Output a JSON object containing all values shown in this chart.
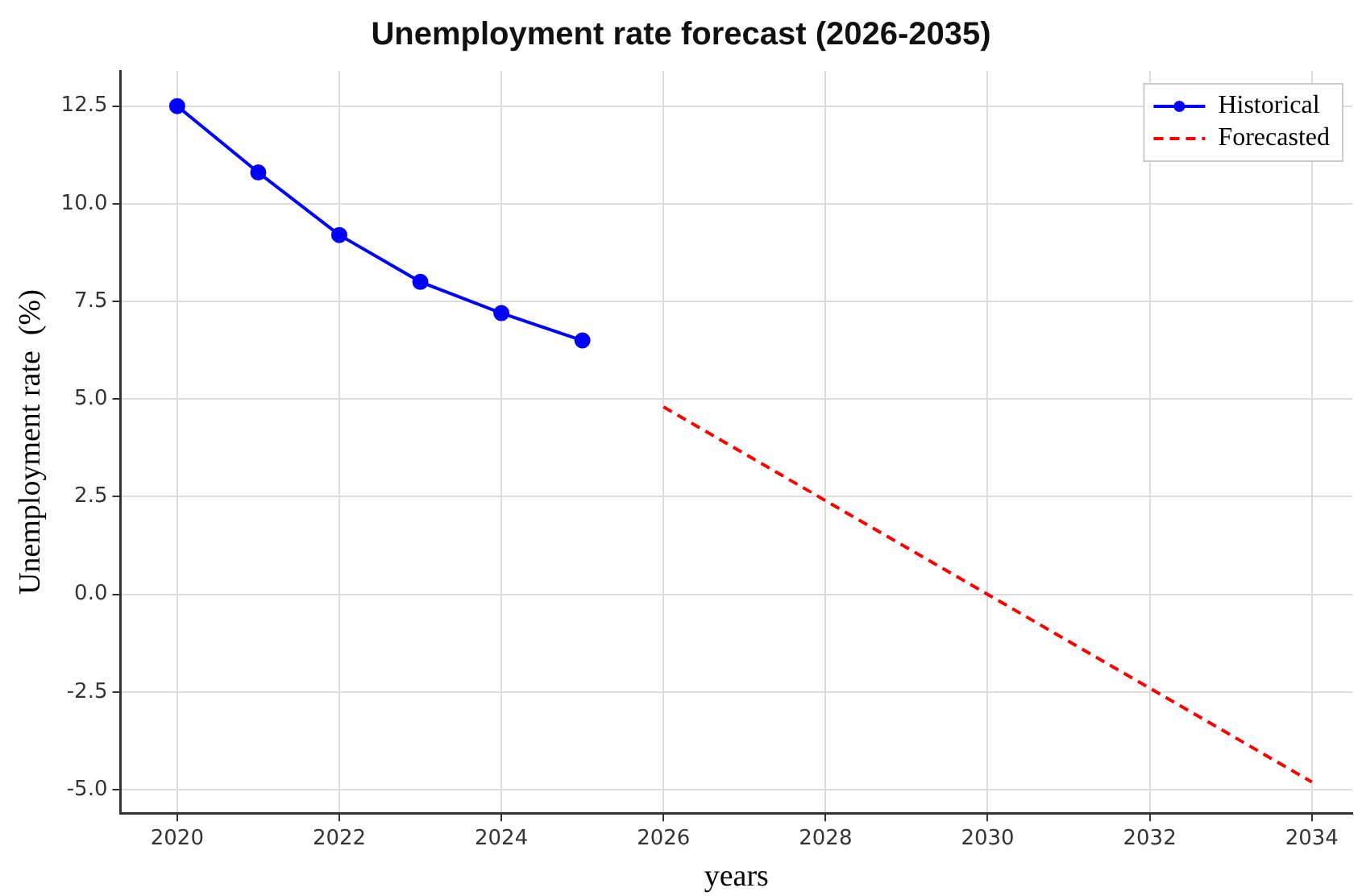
{
  "chart_data": {
    "type": "line",
    "title": "Unemployment rate forecast (2026-2035)",
    "xlabel": "years",
    "ylabel": "Unemployment rate  (%)",
    "series": [
      {
        "name": "Historical",
        "color": "#0000ff",
        "marker": "circle",
        "line_style": "solid",
        "x": [
          2020,
          2021,
          2022,
          2023,
          2024,
          2025
        ],
        "values": [
          12.5,
          10.8,
          9.2,
          8.0,
          7.2,
          6.5
        ]
      },
      {
        "name": "Forecasted",
        "color": "#ff0000",
        "marker": "none",
        "line_style": "dashed",
        "x": [
          2026,
          2030,
          2034
        ],
        "values": [
          4.8,
          0,
          -4.8
        ]
      }
    ],
    "xlim": [
      2019.3,
      2034.5
    ],
    "xticks": [
      2020,
      2022,
      2024,
      2026,
      2028,
      2030,
      2032,
      2034
    ],
    "ylim": [
      -5.6,
      13.4
    ],
    "yticks": [
      {
        "value": -5,
        "label": "-5.0"
      },
      {
        "value": -2.5,
        "label": "-2.5"
      },
      {
        "value": 0,
        "label": "0.0"
      },
      {
        "value": 2.5,
        "label": "2.5"
      },
      {
        "value": 5,
        "label": "5.0"
      },
      {
        "value": 7.5,
        "label": "7.5"
      },
      {
        "value": 10,
        "label": "10.0"
      },
      {
        "value": 12.5,
        "label": "12.5"
      }
    ],
    "grid": true,
    "legend": "top right"
  }
}
